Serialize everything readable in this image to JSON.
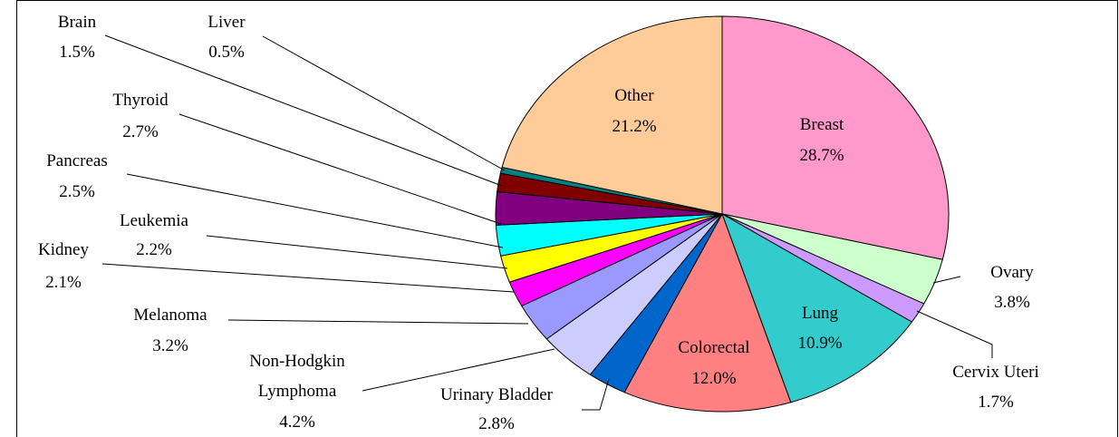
{
  "chart_data": {
    "type": "pie",
    "categories": [
      "Breast",
      "Ovary",
      "Cervix Uteri",
      "Lung",
      "Colorectal",
      "Urinary Bladder",
      "Non-Hodgkin Lymphoma",
      "Melanoma",
      "Kidney",
      "Leukemia",
      "Pancreas",
      "Thyroid",
      "Brain",
      "Liver",
      "Other"
    ],
    "values": [
      28.7,
      3.8,
      1.7,
      10.9,
      12.0,
      2.8,
      4.2,
      3.2,
      2.1,
      2.2,
      2.5,
      2.7,
      1.5,
      0.5,
      21.2
    ],
    "value_labels": [
      "28.7%",
      "3.8%",
      "1.7%",
      "10.9%",
      "12.0%",
      "2.8%",
      "4.2%",
      "3.2%",
      "2.1%",
      "2.2%",
      "2.5%",
      "2.7%",
      "1.5%",
      "0.5%",
      "21.2%"
    ],
    "colors": [
      "#ff99cc",
      "#ccffcc",
      "#cc99ff",
      "#33cccc",
      "#ff8080",
      "#0066cc",
      "#ccccff",
      "#9999ff",
      "#ff00ff",
      "#ffff00",
      "#00ffff",
      "#800080",
      "#800000",
      "#008080",
      "#ffcc99"
    ]
  }
}
